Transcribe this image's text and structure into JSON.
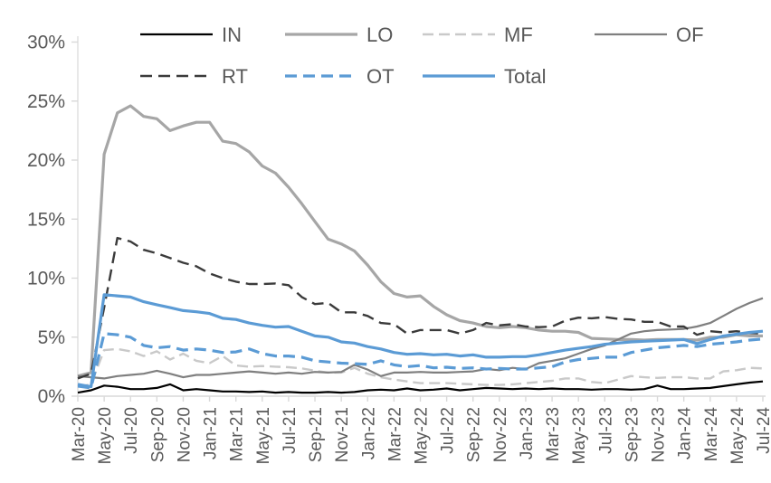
{
  "chart_data": {
    "type": "line",
    "title": "",
    "xlabel": "",
    "ylabel": "",
    "ylim": [
      0,
      30
    ],
    "y_tick_step": 5,
    "y_tick_labels": [
      "0%",
      "5%",
      "10%",
      "15%",
      "20%",
      "25%",
      "30%"
    ],
    "x_tick_every": 2,
    "grid": false,
    "legend_position": "top",
    "axis_color": "#d9d9d9",
    "label_color": "#595959",
    "months": [
      "Mar-20",
      "Apr-20",
      "May-20",
      "Jun-20",
      "Jul-20",
      "Aug-20",
      "Sep-20",
      "Oct-20",
      "Nov-20",
      "Dec-20",
      "Jan-21",
      "Feb-21",
      "Mar-21",
      "Apr-21",
      "May-21",
      "Jun-21",
      "Jul-21",
      "Aug-21",
      "Sep-21",
      "Oct-21",
      "Nov-21",
      "Dec-21",
      "Jan-22",
      "Feb-22",
      "Mar-22",
      "Apr-22",
      "May-22",
      "Jun-22",
      "Jul-22",
      "Aug-22",
      "Sep-22",
      "Oct-22",
      "Nov-22",
      "Dec-22",
      "Jan-23",
      "Feb-23",
      "Mar-23",
      "Apr-23",
      "May-23",
      "Jun-23",
      "Jul-23",
      "Aug-23",
      "Sep-23",
      "Oct-23",
      "Nov-23",
      "Dec-23",
      "Jan-24",
      "Feb-24",
      "Mar-24",
      "Apr-24",
      "May-24",
      "Jun-24",
      "Jul-24"
    ],
    "series": [
      {
        "name": "IN",
        "color": "#000000",
        "dash": "",
        "width": 2.2,
        "values": [
          0.3,
          0.5,
          0.9,
          0.8,
          0.6,
          0.6,
          0.7,
          1.0,
          0.5,
          0.6,
          0.5,
          0.4,
          0.4,
          0.35,
          0.4,
          0.3,
          0.35,
          0.3,
          0.3,
          0.35,
          0.3,
          0.35,
          0.5,
          0.55,
          0.5,
          0.65,
          0.5,
          0.55,
          0.65,
          0.5,
          0.6,
          0.7,
          0.65,
          0.6,
          0.65,
          0.6,
          0.65,
          0.6,
          0.6,
          0.55,
          0.6,
          0.6,
          0.55,
          0.6,
          0.9,
          0.6,
          0.6,
          0.65,
          0.7,
          0.85,
          1.0,
          1.15,
          1.25
        ]
      },
      {
        "name": "LO",
        "color": "#a6a6a6",
        "dash": "",
        "width": 3.2,
        "values": [
          1.7,
          2.0,
          20.5,
          24.0,
          24.6,
          23.7,
          23.5,
          22.5,
          22.9,
          23.2,
          23.2,
          21.6,
          21.4,
          20.7,
          19.5,
          18.9,
          17.7,
          16.3,
          14.8,
          13.3,
          12.9,
          12.3,
          11.1,
          9.7,
          8.7,
          8.4,
          8.5,
          7.6,
          6.9,
          6.4,
          6.2,
          5.9,
          5.8,
          5.9,
          5.8,
          5.6,
          5.5,
          5.5,
          5.4,
          4.9,
          4.85,
          4.8,
          4.8,
          4.75,
          4.8,
          4.8,
          4.8,
          4.75,
          5.0,
          5.0,
          5.2,
          5.1,
          5.1
        ]
      },
      {
        "name": "MF",
        "color": "#c9c9c9",
        "dash": "12 6",
        "width": 2.4,
        "values": [
          0.8,
          1.0,
          3.9,
          4.0,
          3.8,
          3.4,
          3.8,
          3.1,
          3.6,
          3.0,
          2.8,
          3.4,
          2.6,
          2.5,
          2.55,
          2.5,
          2.45,
          2.35,
          2.15,
          2.0,
          2.0,
          2.4,
          1.9,
          1.6,
          1.4,
          1.25,
          1.1,
          1.1,
          1.1,
          1.05,
          1.0,
          0.95,
          0.95,
          1.0,
          1.1,
          1.2,
          1.3,
          1.5,
          1.5,
          1.2,
          1.1,
          1.4,
          1.7,
          1.6,
          1.55,
          1.6,
          1.6,
          1.5,
          1.5,
          2.1,
          2.2,
          2.4,
          2.35
        ]
      },
      {
        "name": "OF",
        "color": "#7f7f7f",
        "dash": "",
        "width": 2.2,
        "values": [
          1.7,
          1.6,
          1.5,
          1.7,
          1.8,
          1.9,
          2.15,
          1.9,
          1.6,
          1.8,
          1.8,
          1.9,
          2.0,
          2.1,
          2.0,
          1.9,
          2.0,
          1.9,
          2.05,
          2.0,
          2.05,
          2.65,
          2.25,
          1.7,
          2.0,
          2.0,
          2.05,
          2.0,
          2.0,
          2.05,
          2.1,
          2.3,
          2.2,
          2.4,
          2.3,
          2.8,
          3.0,
          3.2,
          3.6,
          4.0,
          4.3,
          4.8,
          5.3,
          5.5,
          5.6,
          5.65,
          5.7,
          5.9,
          6.2,
          6.8,
          7.4,
          7.9,
          8.3
        ]
      },
      {
        "name": "RT",
        "color": "#3b3b3b",
        "dash": "13 7",
        "width": 2.4,
        "values": [
          1.5,
          1.9,
          7.5,
          13.4,
          13.1,
          12.4,
          12.1,
          11.7,
          11.3,
          11.0,
          10.4,
          10.0,
          9.7,
          9.5,
          9.5,
          9.55,
          9.4,
          8.4,
          7.8,
          7.9,
          7.1,
          7.1,
          6.8,
          6.2,
          6.1,
          5.3,
          5.6,
          5.6,
          5.6,
          5.3,
          5.6,
          6.2,
          6.0,
          6.1,
          5.9,
          5.85,
          5.9,
          6.4,
          6.65,
          6.6,
          6.7,
          6.55,
          6.5,
          6.3,
          6.3,
          5.9,
          5.9,
          5.2,
          5.5,
          5.4,
          5.5,
          5.35,
          5.3
        ]
      },
      {
        "name": "OT",
        "color": "#5b9bd5",
        "dash": "13 7",
        "width": 3.2,
        "values": [
          0.85,
          0.7,
          5.3,
          5.2,
          5.0,
          4.3,
          4.1,
          4.2,
          3.9,
          4.0,
          3.9,
          3.7,
          3.75,
          4.0,
          3.6,
          3.4,
          3.4,
          3.3,
          3.0,
          2.9,
          2.8,
          2.75,
          2.7,
          3.0,
          2.65,
          2.5,
          2.6,
          2.4,
          2.45,
          2.35,
          2.4,
          2.3,
          2.35,
          2.3,
          2.3,
          2.4,
          2.5,
          2.9,
          3.1,
          3.2,
          3.3,
          3.3,
          3.7,
          3.9,
          4.1,
          4.2,
          4.3,
          4.2,
          4.4,
          4.5,
          4.6,
          4.75,
          4.85
        ]
      },
      {
        "name": "Total",
        "color": "#5b9bd5",
        "dash": "",
        "width": 3.2,
        "values": [
          1.0,
          0.8,
          8.6,
          8.5,
          8.4,
          8.0,
          7.75,
          7.5,
          7.25,
          7.15,
          7.0,
          6.6,
          6.5,
          6.2,
          6.0,
          5.85,
          5.9,
          5.5,
          5.1,
          5.0,
          4.6,
          4.5,
          4.2,
          4.0,
          3.7,
          3.55,
          3.6,
          3.5,
          3.55,
          3.4,
          3.5,
          3.3,
          3.3,
          3.35,
          3.35,
          3.5,
          3.7,
          3.9,
          4.05,
          4.2,
          4.4,
          4.5,
          4.6,
          4.65,
          4.7,
          4.75,
          4.8,
          4.45,
          4.8,
          5.1,
          5.25,
          5.4,
          5.5
        ]
      }
    ],
    "draw_order": [
      "LO",
      "MF",
      "OF",
      "RT",
      "OT",
      "Total",
      "IN"
    ],
    "legend_rows": [
      [
        "IN",
        "LO",
        "MF",
        "OF"
      ],
      [
        "RT",
        "OT",
        "Total"
      ]
    ]
  }
}
